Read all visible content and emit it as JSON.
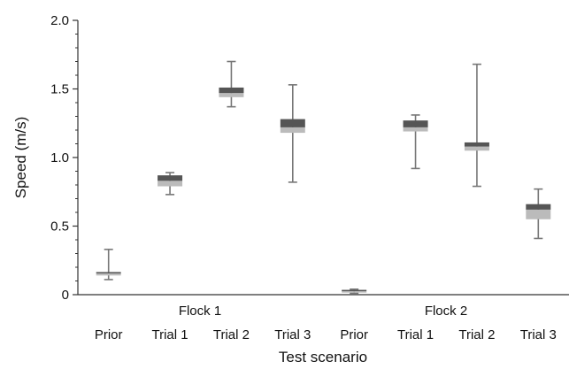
{
  "chart_data": {
    "type": "box",
    "xlabel": "Test scenario",
    "ylabel": "Speed (m/s)",
    "ylim": [
      0,
      2.0
    ],
    "y_ticks": [
      "0",
      "0.5",
      "1.0",
      "1.5",
      "2.0"
    ],
    "y_tick_values": [
      0,
      0.5,
      1.0,
      1.5,
      2.0
    ],
    "groups": [
      "Flock 1",
      "Flock 2"
    ],
    "categories": [
      "Prior",
      "Trial 1",
      "Trial 2",
      "Trial 3",
      "Prior",
      "Trial 1",
      "Trial 2",
      "Trial 3"
    ],
    "boxes": [
      {
        "group": "Flock 1",
        "label": "Prior",
        "min": 0.11,
        "q1": 0.14,
        "median": 0.155,
        "q3": 0.165,
        "max": 0.33
      },
      {
        "group": "Flock 1",
        "label": "Trial 1",
        "min": 0.73,
        "q1": 0.79,
        "median": 0.83,
        "q3": 0.87,
        "max": 0.89
      },
      {
        "group": "Flock 1",
        "label": "Trial 2",
        "min": 1.37,
        "q1": 1.44,
        "median": 1.47,
        "q3": 1.51,
        "max": 1.7
      },
      {
        "group": "Flock 1",
        "label": "Trial 3",
        "min": 0.82,
        "q1": 1.18,
        "median": 1.22,
        "q3": 1.28,
        "max": 1.53
      },
      {
        "group": "Flock 2",
        "label": "Prior",
        "min": 0.01,
        "q1": 0.015,
        "median": 0.025,
        "q3": 0.035,
        "max": 0.04
      },
      {
        "group": "Flock 2",
        "label": "Trial 1",
        "min": 0.92,
        "q1": 1.19,
        "median": 1.22,
        "q3": 1.27,
        "max": 1.31
      },
      {
        "group": "Flock 2",
        "label": "Trial 2",
        "min": 0.79,
        "q1": 1.05,
        "median": 1.08,
        "q3": 1.11,
        "max": 1.68
      },
      {
        "group": "Flock 2",
        "label": "Trial 3",
        "min": 0.41,
        "q1": 0.55,
        "median": 0.62,
        "q3": 0.66,
        "max": 0.77
      }
    ],
    "colors": {
      "upper_box": "#555555",
      "lower_box": "#bbbbbb",
      "whisker": "#777777"
    }
  }
}
